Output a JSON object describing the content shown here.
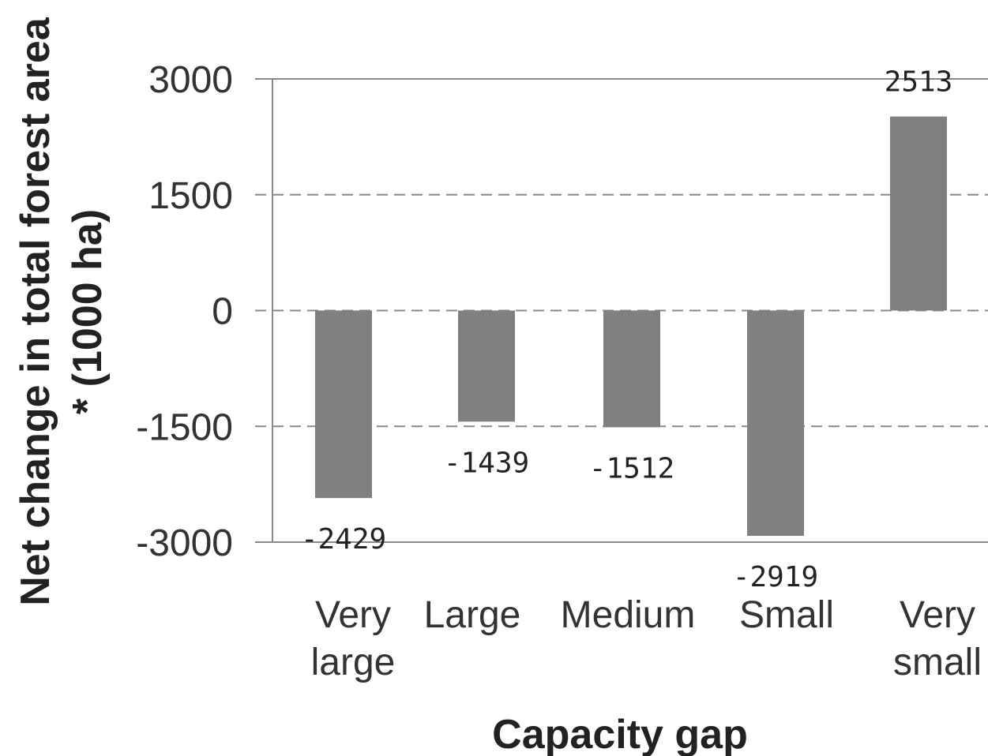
{
  "chart_data": {
    "type": "bar",
    "categories": [
      [
        "Very",
        "large"
      ],
      [
        "Large"
      ],
      [
        "Medium"
      ],
      [
        "Small"
      ],
      [
        "Very",
        "small"
      ]
    ],
    "values": [
      -2429,
      -1439,
      -1512,
      -2919,
      2513
    ],
    "data_labels": [
      "-2429",
      "-1439",
      "-1512",
      "-2919",
      "2513"
    ],
    "ylabel": [
      "Net change in total forest area",
      "* (1000 ha)"
    ],
    "xlabel": "Capacity gap",
    "ylim": [
      -3000,
      3000
    ],
    "yticks": [
      3000,
      1500,
      0,
      -1500,
      -3000
    ],
    "grid": "horizontal dashed",
    "bar_color": "#808080"
  }
}
